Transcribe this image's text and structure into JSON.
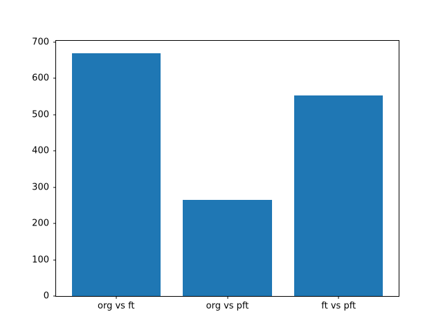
{
  "chart_data": {
    "type": "bar",
    "categories": [
      "org vs ft",
      "org vs pft",
      "ft vs pft"
    ],
    "values": [
      670,
      265,
      553
    ],
    "title": "",
    "xlabel": "",
    "ylabel": "",
    "ylim": [
      0,
      703.5
    ],
    "xlim": [
      -0.54,
      2.54
    ],
    "yticks": [
      0,
      100,
      200,
      300,
      400,
      500,
      600,
      700
    ],
    "bar_width": 0.8,
    "bar_color": "#1f77b4",
    "spine_color": "#000000",
    "background_color": "#ffffff",
    "grid": false,
    "legend": "none"
  }
}
